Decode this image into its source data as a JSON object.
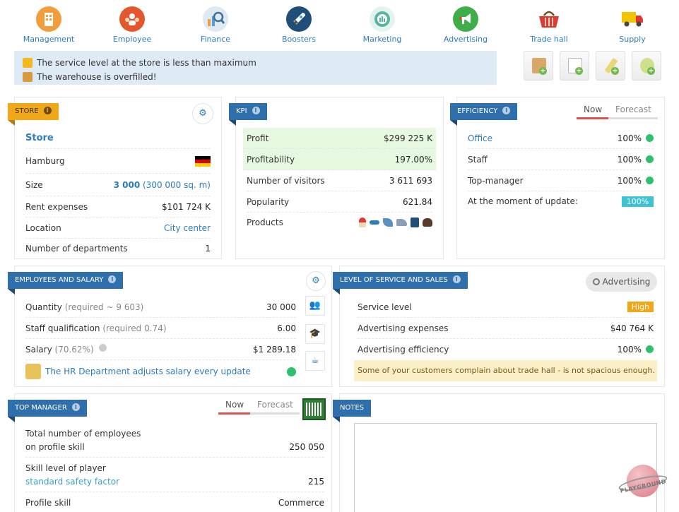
{
  "nav": [
    {
      "label": "Management",
      "icon": "building-icon",
      "color": "#f39c3c"
    },
    {
      "label": "Employee",
      "icon": "people-icon",
      "color": "#e4572e"
    },
    {
      "label": "Finance",
      "icon": "chart-magnifier-icon",
      "color": "#9bb8d3"
    },
    {
      "label": "Boosters",
      "icon": "rocket-icon",
      "color": "#1f4e79"
    },
    {
      "label": "Marketing",
      "icon": "target-icon",
      "color": "#58b59d"
    },
    {
      "label": "Advertising",
      "icon": "megaphone-icon",
      "color": "#3fae49"
    },
    {
      "label": "Trade hall",
      "icon": "basket-icon",
      "color": "#e03a2f"
    },
    {
      "label": "Supply",
      "icon": "truck-icon",
      "color": "#f5c400"
    }
  ],
  "alerts": [
    "The service level at the store is less than maximum",
    "The warehouse is overfilled!"
  ],
  "store": {
    "tag": "STORE",
    "title": "Store",
    "city": "Hamburg",
    "size_label": "Size",
    "size_value": "3 000",
    "size_sqm": "(300 000 sq. m)",
    "rent_label": "Rent expenses",
    "rent_value": "$101 724 K",
    "location_label": "Location",
    "location_value": "City center",
    "departments_label": "Number of departments",
    "departments_value": "1"
  },
  "kpi": {
    "tag": "KPI",
    "profit_label": "Profit",
    "profit_value": "$299 225 K",
    "profitability_label": "Profitability",
    "profitability_value": "197.00%",
    "visitors_label": "Number of visitors",
    "visitors_value": "3 611 693",
    "popularity_label": "Popularity",
    "popularity_value": "621.84",
    "products_label": "Products"
  },
  "efficiency": {
    "tag": "EFFICIENCY",
    "tab_now": "Now",
    "tab_forecast": "Forecast",
    "office_label": "Office",
    "office_value": "100%",
    "staff_label": "Staff",
    "staff_value": "100%",
    "topmanager_label": "Top-manager",
    "topmanager_value": "100%",
    "update_label": "At the moment of update:",
    "update_value": "100%"
  },
  "employees": {
    "tag": "EMPLOYEES AND SALARY",
    "quantity_label": "Quantity",
    "quantity_req": "(required ~ 9 603)",
    "quantity_value": "30 000",
    "qual_label": "Staff qualification",
    "qual_req": "(required 0.74)",
    "qual_value": "6.00",
    "salary_label": "Salary",
    "salary_pct": "(70.62%)",
    "salary_value": "$1 289.18",
    "hr_text": "The HR Department adjusts salary every update"
  },
  "service": {
    "tag": "LEVEL OF SERVICE AND SALES",
    "advertising_button": "Advertising",
    "level_label": "Service level",
    "level_value": "High",
    "adexp_label": "Advertising expenses",
    "adexp_value": "$40 764 K",
    "adeff_label": "Advertising efficiency",
    "adeff_value": "100%",
    "warning": "Some of your customers complain about trade hall - is not spacious enough."
  },
  "topmanager": {
    "tag": "TOP MANAGER",
    "tab_now": "Now",
    "tab_forecast": "Forecast",
    "total_label_1": "Total number of employees",
    "total_label_2": "on profile skill",
    "total_value": "250 050",
    "skill_label": "Skill level of player",
    "skill_sub": "standard safety factor",
    "skill_value": "215",
    "profile_label": "Profile skill",
    "profile_value": "Commerce"
  },
  "notes": {
    "tag": "NOTES"
  },
  "watermark": "PLAYGROUND"
}
